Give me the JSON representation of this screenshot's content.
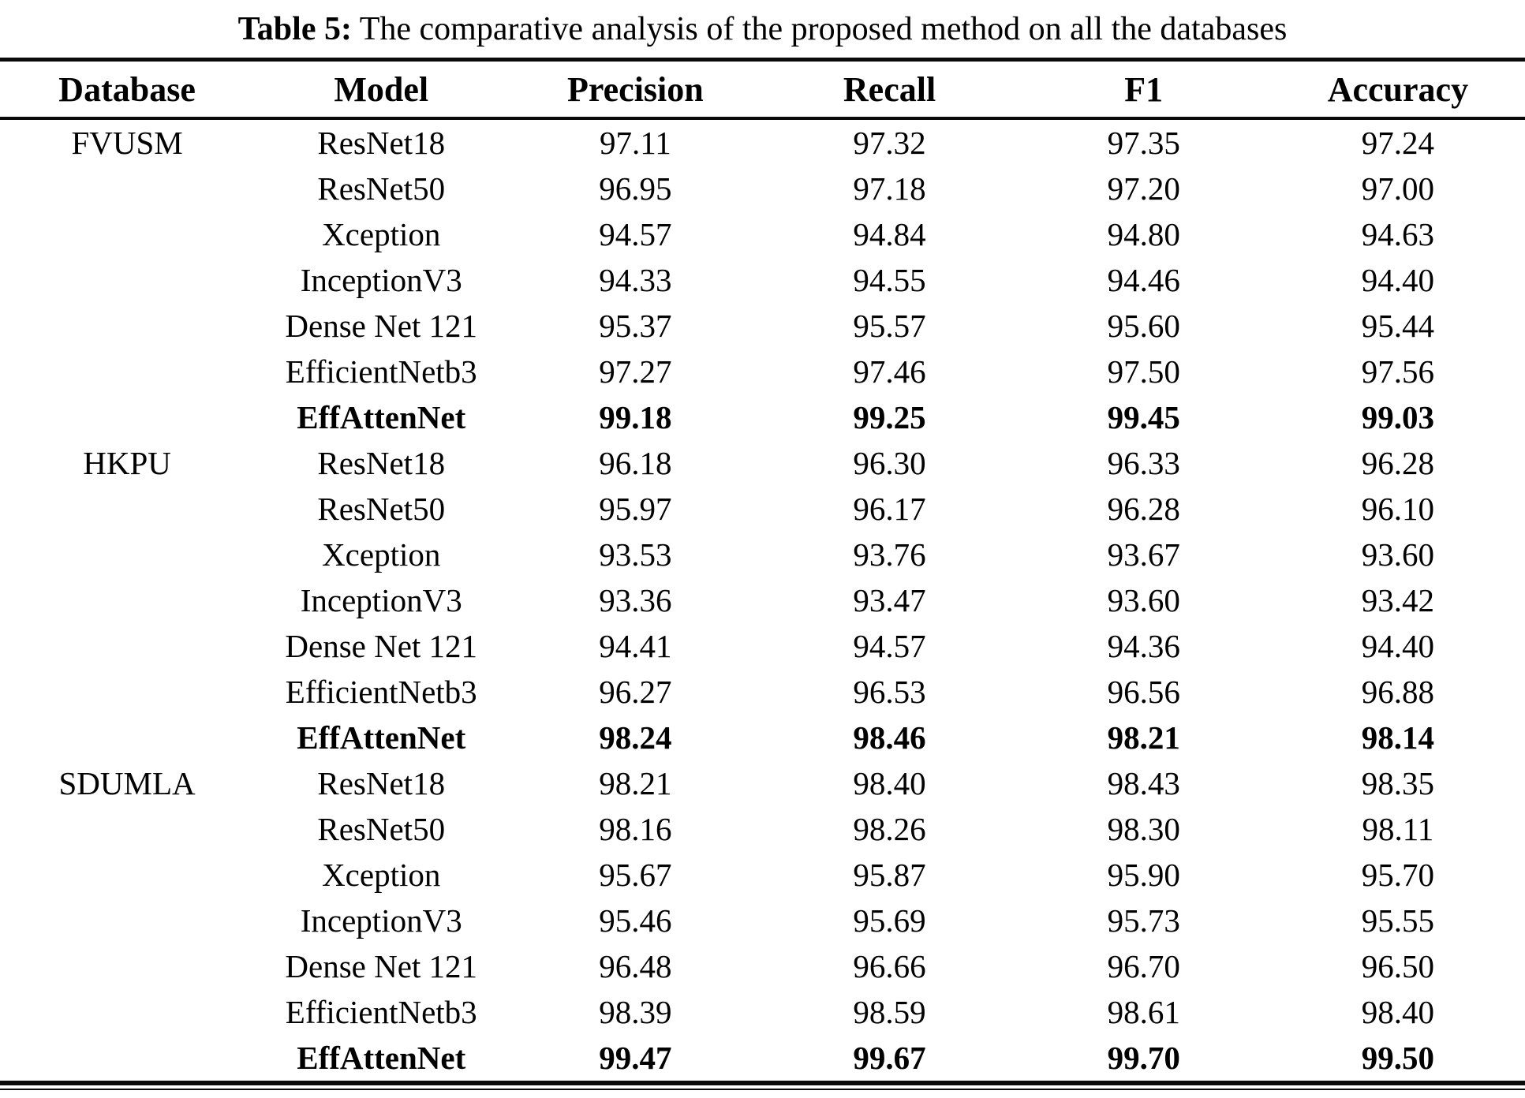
{
  "caption": {
    "label": "Table 5:",
    "text": " The comparative analysis of the proposed method on all the databases"
  },
  "table": {
    "columns": [
      "Database",
      "Model",
      "Precision",
      "Recall",
      "F1",
      "Accuracy"
    ],
    "rows": [
      {
        "database": "FVUSM",
        "model": "ResNet18",
        "precision": "97.11",
        "recall": "97.32",
        "f1": "97.35",
        "accuracy": "97.24",
        "bold": false
      },
      {
        "database": "",
        "model": "ResNet50",
        "precision": "96.95",
        "recall": "97.18",
        "f1": "97.20",
        "accuracy": "97.00",
        "bold": false
      },
      {
        "database": "",
        "model": "Xception",
        "precision": "94.57",
        "recall": "94.84",
        "f1": "94.80",
        "accuracy": "94.63",
        "bold": false
      },
      {
        "database": "",
        "model": "InceptionV3",
        "precision": "94.33",
        "recall": "94.55",
        "f1": "94.46",
        "accuracy": "94.40",
        "bold": false
      },
      {
        "database": "",
        "model": "Dense Net 121",
        "precision": "95.37",
        "recall": "95.57",
        "f1": "95.60",
        "accuracy": "95.44",
        "bold": false
      },
      {
        "database": "",
        "model": "EfficientNetb3",
        "precision": "97.27",
        "recall": "97.46",
        "f1": "97.50",
        "accuracy": "97.56",
        "bold": false
      },
      {
        "database": "",
        "model": "EffAttenNet",
        "precision": "99.18",
        "recall": "99.25",
        "f1": "99.45",
        "accuracy": "99.03",
        "bold": true
      },
      {
        "database": "HKPU",
        "model": "ResNet18",
        "precision": "96.18",
        "recall": "96.30",
        "f1": "96.33",
        "accuracy": "96.28",
        "bold": false
      },
      {
        "database": "",
        "model": "ResNet50",
        "precision": "95.97",
        "recall": "96.17",
        "f1": "96.28",
        "accuracy": "96.10",
        "bold": false
      },
      {
        "database": "",
        "model": "Xception",
        "precision": "93.53",
        "recall": "93.76",
        "f1": "93.67",
        "accuracy": "93.60",
        "bold": false
      },
      {
        "database": "",
        "model": "InceptionV3",
        "precision": "93.36",
        "recall": "93.47",
        "f1": "93.60",
        "accuracy": "93.42",
        "bold": false
      },
      {
        "database": "",
        "model": "Dense Net 121",
        "precision": "94.41",
        "recall": "94.57",
        "f1": "94.36",
        "accuracy": "94.40",
        "bold": false
      },
      {
        "database": "",
        "model": "EfficientNetb3",
        "precision": "96.27",
        "recall": "96.53",
        "f1": "96.56",
        "accuracy": "96.88",
        "bold": false
      },
      {
        "database": "",
        "model": "EffAttenNet",
        "precision": "98.24",
        "recall": "98.46",
        "f1": "98.21",
        "accuracy": "98.14",
        "bold": true
      },
      {
        "database": "SDUMLA",
        "model": "ResNet18",
        "precision": "98.21",
        "recall": "98.40",
        "f1": "98.43",
        "accuracy": "98.35",
        "bold": false
      },
      {
        "database": "",
        "model": "ResNet50",
        "precision": "98.16",
        "recall": "98.26",
        "f1": "98.30",
        "accuracy": "98.11",
        "bold": false
      },
      {
        "database": "",
        "model": "Xception",
        "precision": "95.67",
        "recall": "95.87",
        "f1": "95.90",
        "accuracy": "95.70",
        "bold": false
      },
      {
        "database": "",
        "model": "InceptionV3",
        "precision": "95.46",
        "recall": "95.69",
        "f1": "95.73",
        "accuracy": "95.55",
        "bold": false
      },
      {
        "database": "",
        "model": "Dense Net 121",
        "precision": "96.48",
        "recall": "96.66",
        "f1": "96.70",
        "accuracy": "96.50",
        "bold": false
      },
      {
        "database": "",
        "model": "EfficientNetb3",
        "precision": "98.39",
        "recall": "98.59",
        "f1": "98.61",
        "accuracy": "98.40",
        "bold": false
      },
      {
        "database": "",
        "model": "EffAttenNet",
        "precision": "99.47",
        "recall": "99.67",
        "f1": "99.70",
        "accuracy": "99.50",
        "bold": true
      }
    ]
  }
}
